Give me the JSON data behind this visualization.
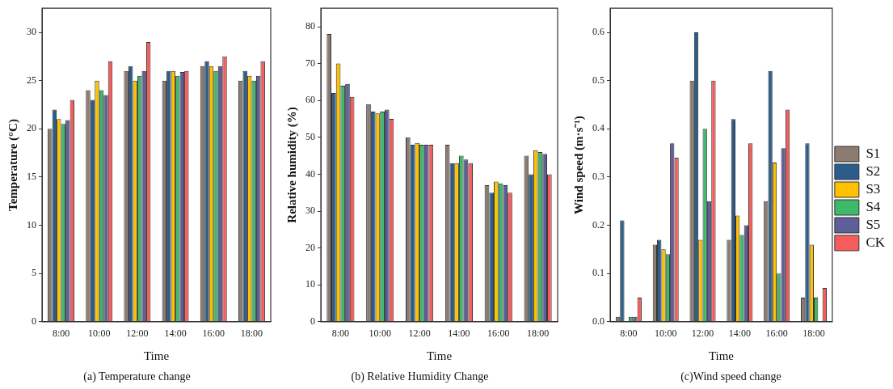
{
  "chart_data": [
    {
      "type": "bar",
      "title": "(a) Temperature change",
      "xlabel": "Time",
      "ylabel": "Temperature (°C)",
      "categories": [
        "8:00",
        "10:00",
        "12:00",
        "14:00",
        "16:00",
        "18:00"
      ],
      "series": [
        {
          "color": "#8c7b70",
          "values": [
            20,
            24,
            26,
            25,
            26.5,
            25
          ]
        },
        {
          "color": "#2b5c8a",
          "values": [
            22,
            23,
            26.5,
            26,
            27,
            26
          ]
        },
        {
          "color": "#ffc000",
          "values": [
            21,
            25,
            25,
            26,
            26.5,
            25.5
          ]
        },
        {
          "color": "#3cb96a",
          "values": [
            20.5,
            24,
            25.5,
            25.5,
            26,
            25
          ]
        },
        {
          "color": "#5e5e99",
          "values": [
            20.9,
            23.5,
            26,
            25.9,
            26.5,
            25.5
          ]
        },
        {
          "color": "#f75c5c",
          "values": [
            23,
            27,
            29,
            26,
            27.5,
            27
          ]
        }
      ],
      "ylim": [
        0,
        32.5
      ],
      "yticks": [
        0,
        5,
        10,
        15,
        20,
        25,
        30
      ],
      "grid": false,
      "legend": false
    },
    {
      "type": "bar",
      "title": "(b) Relative Humidity Change",
      "xlabel": "Time",
      "ylabel": "Relative humidity (%)",
      "categories": [
        "8:00",
        "10:00",
        "12:00",
        "14:00",
        "16:00",
        "18:00"
      ],
      "series": [
        {
          "color": "#8c7b70",
          "values": [
            78,
            59,
            50,
            48,
            37,
            45
          ]
        },
        {
          "color": "#2b5c8a",
          "values": [
            62,
            57,
            48,
            43,
            35,
            40
          ]
        },
        {
          "color": "#ffc000",
          "values": [
            70,
            56.5,
            48.5,
            43,
            38,
            46.5
          ]
        },
        {
          "color": "#3cb96a",
          "values": [
            64,
            57,
            48,
            45,
            37.5,
            46
          ]
        },
        {
          "color": "#5e5e99",
          "values": [
            64.5,
            57.5,
            48,
            44,
            37,
            45.5
          ]
        },
        {
          "color": "#f75c5c",
          "values": [
            61,
            55,
            48,
            43,
            35,
            40
          ]
        }
      ],
      "ylim": [
        0,
        85
      ],
      "yticks": [
        0,
        10,
        20,
        30,
        40,
        50,
        60,
        70,
        80
      ],
      "grid": false,
      "legend": false
    },
    {
      "type": "bar",
      "title": "(c)Wind speed change",
      "xlabel": "Time",
      "ylabel": "Wind speed (m·s⁻¹)",
      "categories": [
        "8:00",
        "10:00",
        "12:00",
        "14:00",
        "16:00",
        "18:00"
      ],
      "series": [
        {
          "name": "S1",
          "color": "#8c7b70",
          "values": [
            0.01,
            0.16,
            0.5,
            0.17,
            0.25,
            0.05
          ]
        },
        {
          "name": "S2",
          "color": "#2b5c8a",
          "values": [
            0.21,
            0.17,
            0.6,
            0.42,
            0.52,
            0.37
          ]
        },
        {
          "name": "S3",
          "color": "#ffc000",
          "values": [
            0,
            0.15,
            0.17,
            0.22,
            0.33,
            0.16
          ]
        },
        {
          "name": "S4",
          "color": "#3cb96a",
          "values": [
            0.01,
            0.14,
            0.4,
            0.18,
            0.1,
            0.05
          ]
        },
        {
          "name": "S5",
          "color": "#5e5e99",
          "values": [
            0.01,
            0.37,
            0.25,
            0.2,
            0.36,
            0
          ]
        },
        {
          "name": "CK",
          "color": "#f75c5c",
          "values": [
            0.05,
            0.34,
            0.5,
            0.37,
            0.44,
            0.07
          ]
        }
      ],
      "ylim": [
        0,
        0.65
      ],
      "yticks": [
        {
          "value": 0,
          "label": "0.0"
        },
        0.1,
        0.2,
        0.3,
        0.4,
        0.5,
        0.6
      ],
      "grid": false,
      "legend": "right"
    }
  ]
}
